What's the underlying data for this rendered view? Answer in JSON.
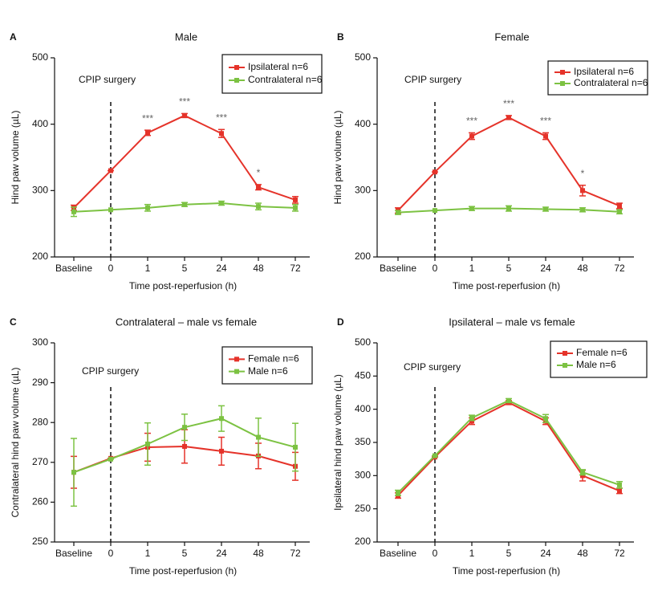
{
  "chart_data": [
    {
      "type": "line",
      "panel": "A",
      "title": "Male",
      "x_label": "Time post-reperfusion (h)",
      "y_label": "Hind paw volume (µL)",
      "annotation": "CPIP surgery",
      "categories": [
        "Baseline",
        "0",
        "1",
        "5",
        "24",
        "48",
        "72"
      ],
      "significance": [
        null,
        null,
        "***",
        "***",
        "***",
        "*",
        null
      ],
      "series": [
        {
          "name": "Ipsilateral n=6",
          "color": "#e5332a",
          "values": [
            274,
            330,
            387,
            413,
            386,
            305,
            286
          ],
          "errors": [
            4,
            0,
            4,
            3,
            6,
            4,
            5
          ]
        },
        {
          "name": "Contralateral n=6",
          "color": "#7cc242",
          "values": [
            268,
            271,
            274,
            279,
            281,
            276,
            274
          ],
          "errors": [
            7,
            0,
            5,
            3,
            3,
            5,
            5
          ]
        }
      ],
      "ylim": [
        200,
        500
      ],
      "yticks": [
        200,
        300,
        400,
        500
      ]
    },
    {
      "type": "line",
      "panel": "B",
      "title": "Female",
      "x_label": "Time post-reperfusion (h)",
      "y_label": "Hind paw volume (µL)",
      "annotation": "CPIP surgery",
      "categories": [
        "Baseline",
        "0",
        "1",
        "5",
        "24",
        "48",
        "72"
      ],
      "significance": [
        null,
        null,
        "***",
        "***",
        "***",
        "*",
        null
      ],
      "series": [
        {
          "name": "Ipsilateral n=6",
          "color": "#e5332a",
          "values": [
            270,
            328,
            382,
            410,
            382,
            300,
            277
          ],
          "errors": [
            4,
            0,
            5,
            3,
            5,
            8,
            4
          ]
        },
        {
          "name": "Contralateral n=6",
          "color": "#7cc242",
          "values": [
            267,
            270,
            273,
            273,
            272,
            271,
            268
          ],
          "errors": [
            3,
            0,
            3,
            4,
            3,
            3,
            3
          ]
        }
      ],
      "ylim": [
        200,
        500
      ],
      "yticks": [
        200,
        300,
        400,
        500
      ]
    },
    {
      "type": "line",
      "panel": "C",
      "title": "Contralateral – male vs female",
      "x_label": "Time post-reperfusion (h)",
      "y_label": "Contralateral hind paw volume (µL)",
      "annotation": "CPIP surgery",
      "categories": [
        "Baseline",
        "0",
        "1",
        "5",
        "24",
        "48",
        "72"
      ],
      "series": [
        {
          "name": "Female n=6",
          "color": "#e5332a",
          "values": [
            267.5,
            271,
            273.8,
            274,
            272.8,
            271.6,
            269
          ],
          "errors": [
            4,
            0,
            3.5,
            4.2,
            3.5,
            3.2,
            3.5
          ]
        },
        {
          "name": "Male n=6",
          "color": "#7cc242",
          "values": [
            267.5,
            270.8,
            274.6,
            278.8,
            281,
            276.3,
            273.8
          ],
          "errors": [
            8.5,
            0,
            5.3,
            3.3,
            3.2,
            4.8,
            6
          ]
        }
      ],
      "ylim": [
        250,
        300
      ],
      "yticks": [
        250,
        260,
        270,
        280,
        290,
        300
      ]
    },
    {
      "type": "line",
      "panel": "D",
      "title": "Ipsilateral – male vs female",
      "x_label": "Time post-reperfusion (h)",
      "y_label": "Ipsilateral hind paw volume (µL)",
      "annotation": "CPIP surgery",
      "categories": [
        "Baseline",
        "0",
        "1",
        "5",
        "24",
        "48",
        "72"
      ],
      "series": [
        {
          "name": "Female n=6",
          "color": "#e5332a",
          "values": [
            270,
            328,
            382,
            410,
            382,
            300,
            277
          ],
          "errors": [
            4,
            0,
            5,
            3,
            5,
            8,
            4
          ]
        },
        {
          "name": "Male n=6",
          "color": "#7cc242",
          "values": [
            274,
            330,
            387,
            413,
            386,
            305,
            286
          ],
          "errors": [
            4,
            0,
            4,
            3,
            6,
            4,
            5
          ]
        }
      ],
      "ylim": [
        200,
        500
      ],
      "yticks": [
        200,
        250,
        300,
        350,
        400,
        450,
        500
      ]
    }
  ]
}
